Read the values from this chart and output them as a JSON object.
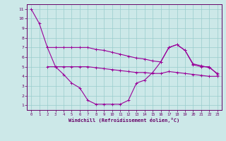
{
  "bg_color": "#cce8e8",
  "line_color": "#990099",
  "grid_color": "#99cccc",
  "xlabel": "Windchill (Refroidissement éolien,°C)",
  "xlim": [
    -0.5,
    23.5
  ],
  "ylim": [
    0.5,
    11.5
  ],
  "xticks": [
    0,
    1,
    2,
    3,
    4,
    5,
    6,
    7,
    8,
    9,
    10,
    11,
    12,
    13,
    14,
    15,
    16,
    17,
    18,
    19,
    20,
    21,
    22,
    23
  ],
  "yticks": [
    1,
    2,
    3,
    4,
    5,
    6,
    7,
    8,
    9,
    10,
    11
  ],
  "line1_x": [
    0,
    1,
    2,
    3,
    4,
    5,
    6,
    7,
    8,
    9,
    10,
    11,
    12,
    13,
    14,
    15,
    16,
    17,
    18,
    19,
    20,
    21,
    22,
    23
  ],
  "line1_y": [
    11,
    9.5,
    7.0,
    5.0,
    4.2,
    3.3,
    2.8,
    1.5,
    1.1,
    1.1,
    1.1,
    1.1,
    1.5,
    3.3,
    3.6,
    4.4,
    5.5,
    7.0,
    7.3,
    6.7,
    5.2,
    5.0,
    5.0,
    4.2
  ],
  "line2_x": [
    2,
    3,
    4,
    5,
    6,
    7,
    8,
    9,
    10,
    11,
    12,
    13,
    14,
    15,
    16,
    17,
    18,
    19,
    20,
    21,
    22,
    23
  ],
  "line2_y": [
    7.0,
    7.0,
    7.0,
    7.0,
    7.0,
    7.0,
    6.8,
    6.7,
    6.5,
    6.3,
    6.1,
    5.9,
    5.8,
    5.6,
    5.5,
    7.0,
    7.3,
    6.7,
    5.3,
    5.1,
    4.9,
    4.3
  ],
  "line3_x": [
    2,
    3,
    4,
    5,
    6,
    7,
    8,
    9,
    10,
    11,
    12,
    13,
    14,
    15,
    16,
    17,
    18,
    19,
    20,
    21,
    22,
    23
  ],
  "line3_y": [
    5.0,
    5.0,
    5.0,
    5.0,
    5.0,
    5.0,
    4.9,
    4.8,
    4.7,
    4.6,
    4.5,
    4.4,
    4.4,
    4.3,
    4.3,
    4.5,
    4.4,
    4.3,
    4.2,
    4.1,
    4.0,
    4.0
  ]
}
